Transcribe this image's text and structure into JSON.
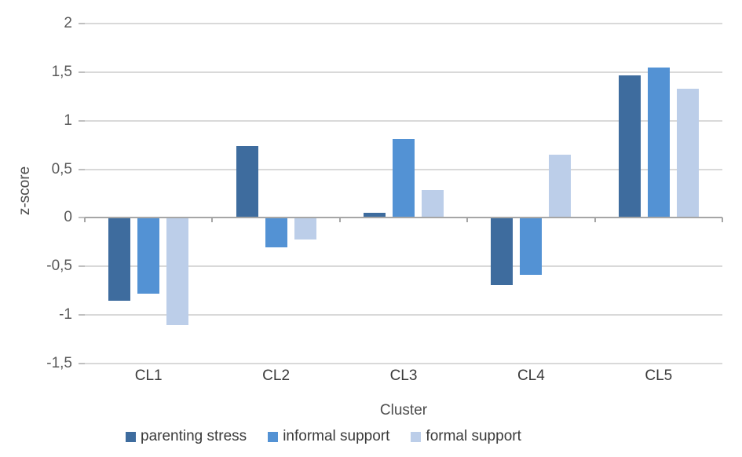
{
  "chart_data": {
    "type": "bar",
    "title": "",
    "categories": [
      "CL1",
      "CL2",
      "CL3",
      "CL4",
      "CL5"
    ],
    "series": [
      {
        "name": "parenting stress",
        "color": "#3E6C9E",
        "values": [
          -0.85,
          0.74,
          0.05,
          -0.69,
          1.47
        ]
      },
      {
        "name": "informal support",
        "color": "#5392D4",
        "values": [
          -0.78,
          -0.3,
          0.81,
          -0.59,
          1.55
        ]
      },
      {
        "name": "formal support",
        "color": "#BCCEE9",
        "values": [
          -1.1,
          -0.22,
          0.29,
          0.65,
          1.33
        ]
      }
    ],
    "xlabel": "Cluster",
    "ylabel": "z-score",
    "ylim": [
      -1.5,
      2
    ],
    "ytick_step": 0.5,
    "ytick_labels": [
      "2",
      "1,5",
      "1",
      "0,5",
      "0",
      "-0,5",
      "-1",
      "-1,5"
    ],
    "grid": true,
    "legend_position": "bottom",
    "colors": {
      "gridline": "#D9D9D9",
      "zero_axis": "#A6A6A6",
      "tick_text": "#595959",
      "category_text": "#3A3A3A",
      "axis_title_text": "#4D4D4D",
      "legend_text": "#3A3A3A",
      "background": "#FFFFFF"
    }
  }
}
